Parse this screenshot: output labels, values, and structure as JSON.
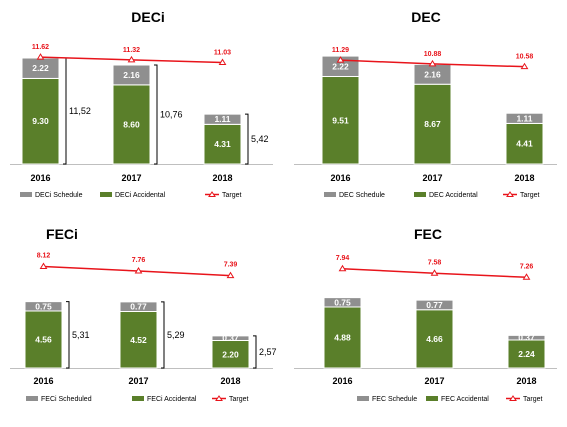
{
  "colors": {
    "schedule": "#8f8f8f",
    "accidental": "#5a7f2a",
    "target": "#e8141b"
  },
  "chart_data": [
    {
      "type": "bar",
      "title": "DECi",
      "categories": [
        "2016",
        "2017",
        "2018"
      ],
      "series": [
        {
          "name": "DECi Schedule",
          "values": [
            2.22,
            2.16,
            1.11
          ],
          "labels": [
            "2.22",
            "2.16",
            "1.11"
          ]
        },
        {
          "name": "DECi Accidental",
          "values": [
            9.3,
            8.6,
            4.31
          ],
          "labels": [
            "9.30",
            "8.60",
            "4.31"
          ]
        },
        {
          "name": "Target",
          "type": "line",
          "values": [
            11.62,
            11.32,
            11.03
          ],
          "labels": [
            "11.62",
            "11.32",
            "11.03"
          ]
        }
      ],
      "totals": [
        "11,52",
        "10,76",
        "5,42"
      ],
      "ylim": [
        0,
        12.8
      ],
      "legend": "bottom"
    },
    {
      "type": "bar",
      "title": "DEC",
      "categories": [
        "2016",
        "2017",
        "2018"
      ],
      "series": [
        {
          "name": "DEC Schedule",
          "values": [
            2.22,
            2.16,
            1.11
          ],
          "labels": [
            "2.22",
            "2.16",
            "1.11"
          ]
        },
        {
          "name": "DEC Accidental",
          "values": [
            9.51,
            8.67,
            4.41
          ],
          "labels": [
            "9.51",
            "8.67",
            "4.41"
          ]
        },
        {
          "name": "Target",
          "type": "line",
          "values": [
            11.29,
            10.88,
            10.58
          ],
          "labels": [
            "11.29",
            "10.88",
            "10.58"
          ]
        }
      ],
      "totals": [],
      "ylim": [
        0,
        12.8
      ],
      "legend": "bottom"
    },
    {
      "type": "bar",
      "title": "FECi",
      "categories": [
        "2016",
        "2017",
        "2018"
      ],
      "series": [
        {
          "name": "FECi Scheduled",
          "values": [
            0.75,
            0.77,
            0.37
          ],
          "labels": [
            "0.75",
            "0.77",
            "0.37"
          ]
        },
        {
          "name": "FECi Accidental",
          "values": [
            4.56,
            4.52,
            2.2
          ],
          "labels": [
            "4.56",
            "4.52",
            "2.20"
          ]
        },
        {
          "name": "Target",
          "type": "line",
          "values": [
            8.12,
            7.76,
            7.39
          ],
          "labels": [
            "8.12",
            "7.76",
            "7.39"
          ]
        }
      ],
      "totals": [
        "5,31",
        "5,29",
        "2,57"
      ],
      "ylim": [
        0,
        9.3
      ],
      "legend": "bottom"
    },
    {
      "type": "bar",
      "title": "FEC",
      "categories": [
        "2016",
        "2017",
        "2018"
      ],
      "series": [
        {
          "name": "FEC Schedule",
          "values": [
            0.75,
            0.77,
            0.37
          ],
          "labels": [
            "0.75",
            "0.77",
            "0.37"
          ]
        },
        {
          "name": "FEC Accidental",
          "values": [
            4.88,
            4.66,
            2.24
          ],
          "labels": [
            "4.88",
            "4.66",
            "2.24"
          ]
        },
        {
          "name": "Target",
          "type": "line",
          "values": [
            7.94,
            7.58,
            7.26
          ],
          "labels": [
            "7.94",
            "7.58",
            "7.26"
          ]
        }
      ],
      "totals": [],
      "ylim": [
        0,
        9.3
      ],
      "legend": "bottom"
    }
  ]
}
